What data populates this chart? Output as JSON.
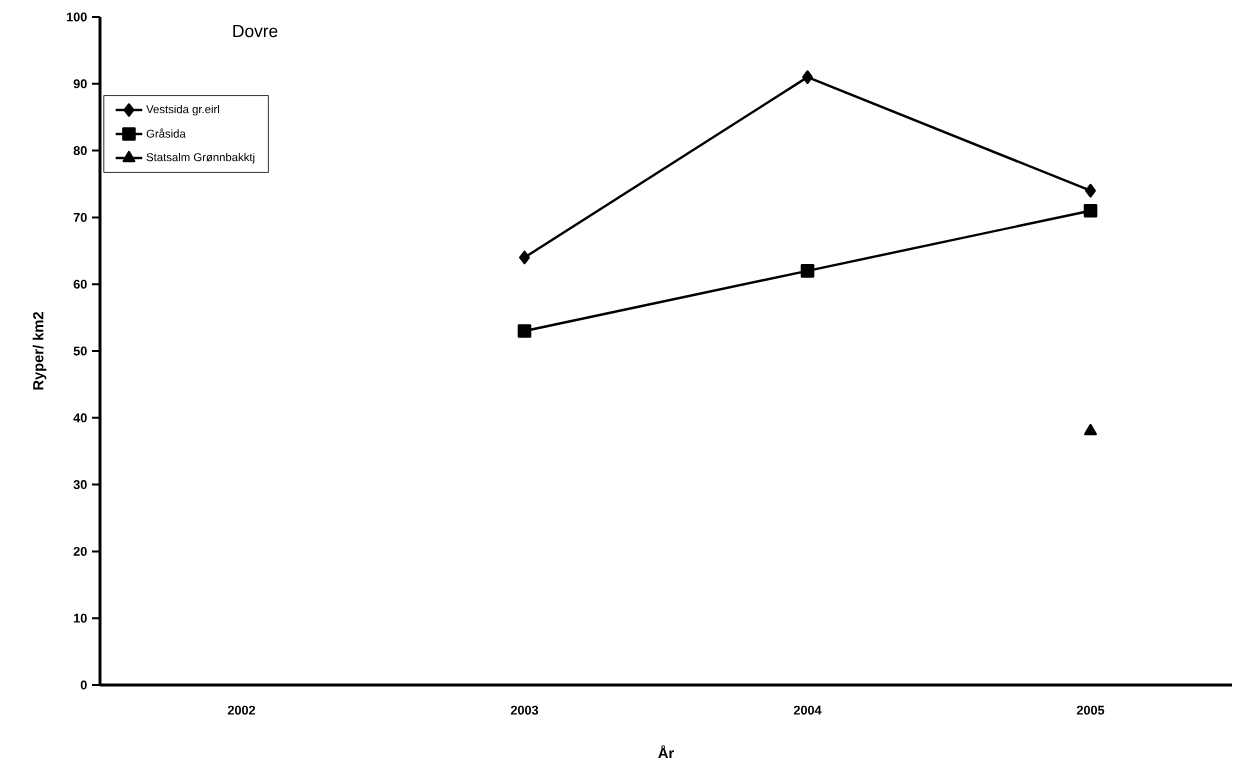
{
  "chart_data": {
    "type": "line",
    "title": "Dovre",
    "xlabel": "År",
    "ylabel": "Ryper/ km2",
    "categories": [
      "2002",
      "2003",
      "2004",
      "2005"
    ],
    "series": [
      {
        "name": "Vestsida gr.eirl",
        "color": "#000000",
        "marker": "diamond",
        "values": [
          null,
          64,
          91,
          74
        ]
      },
      {
        "name": "Gråsida",
        "color": "#000000",
        "marker": "square",
        "values": [
          null,
          53,
          62,
          71
        ]
      },
      {
        "name": "Statsalm Grønnbakktj",
        "color": "#000000",
        "marker": "triangle",
        "values": [
          null,
          null,
          null,
          38
        ]
      }
    ],
    "ylim": [
      0,
      100
    ],
    "yticks": [
      0,
      10,
      20,
      30,
      40,
      50,
      60,
      70,
      80,
      90,
      100
    ],
    "grid": false,
    "legend": "top left",
    "line_style": "solid"
  }
}
